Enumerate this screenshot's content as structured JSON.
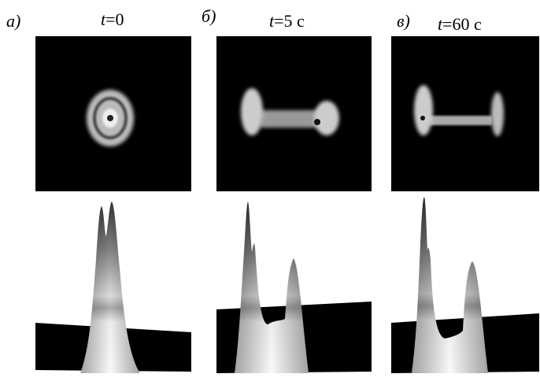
{
  "panels": [
    {
      "label": "а)",
      "time": {
        "var": "t",
        "rest": "=0"
      }
    },
    {
      "label": "б)",
      "time": {
        "var": "t",
        "rest": "=5 с"
      }
    },
    {
      "label": "в)",
      "time": {
        "var": "t",
        "rest": "=60 с"
      }
    }
  ]
}
